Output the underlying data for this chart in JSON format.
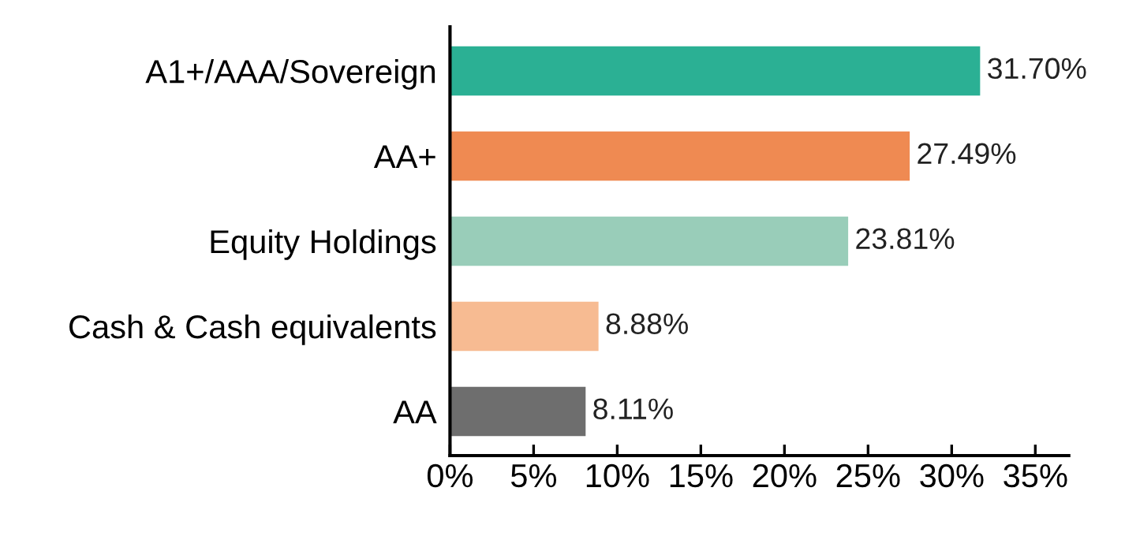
{
  "chart_data": {
    "type": "bar",
    "orientation": "horizontal",
    "categories": [
      "A1+/AAA/Sovereign",
      "AA+",
      "Equity Holdings",
      "Cash & Cash equivalents",
      "AA"
    ],
    "values": [
      31.7,
      27.49,
      23.81,
      8.88,
      8.11
    ],
    "colors": [
      "#2bb094",
      "#ef8a52",
      "#99cdb9",
      "#f7bb92",
      "#6e6e6e"
    ],
    "value_labels": [
      "31.70%",
      "27.49%",
      "23.81%",
      "8.88%",
      "8.11%"
    ],
    "xlim": [
      0,
      37
    ],
    "xticks": [
      {
        "value": 0,
        "label": "0%"
      },
      {
        "value": 5,
        "label": "5%"
      },
      {
        "value": 10,
        "label": "10%"
      },
      {
        "value": 15,
        "label": "15%"
      },
      {
        "value": 20,
        "label": "20%"
      },
      {
        "value": 25,
        "label": "25%"
      },
      {
        "value": 30,
        "label": "30%"
      },
      {
        "value": 35,
        "label": "35%"
      }
    ],
    "grid": false,
    "legend": false
  }
}
